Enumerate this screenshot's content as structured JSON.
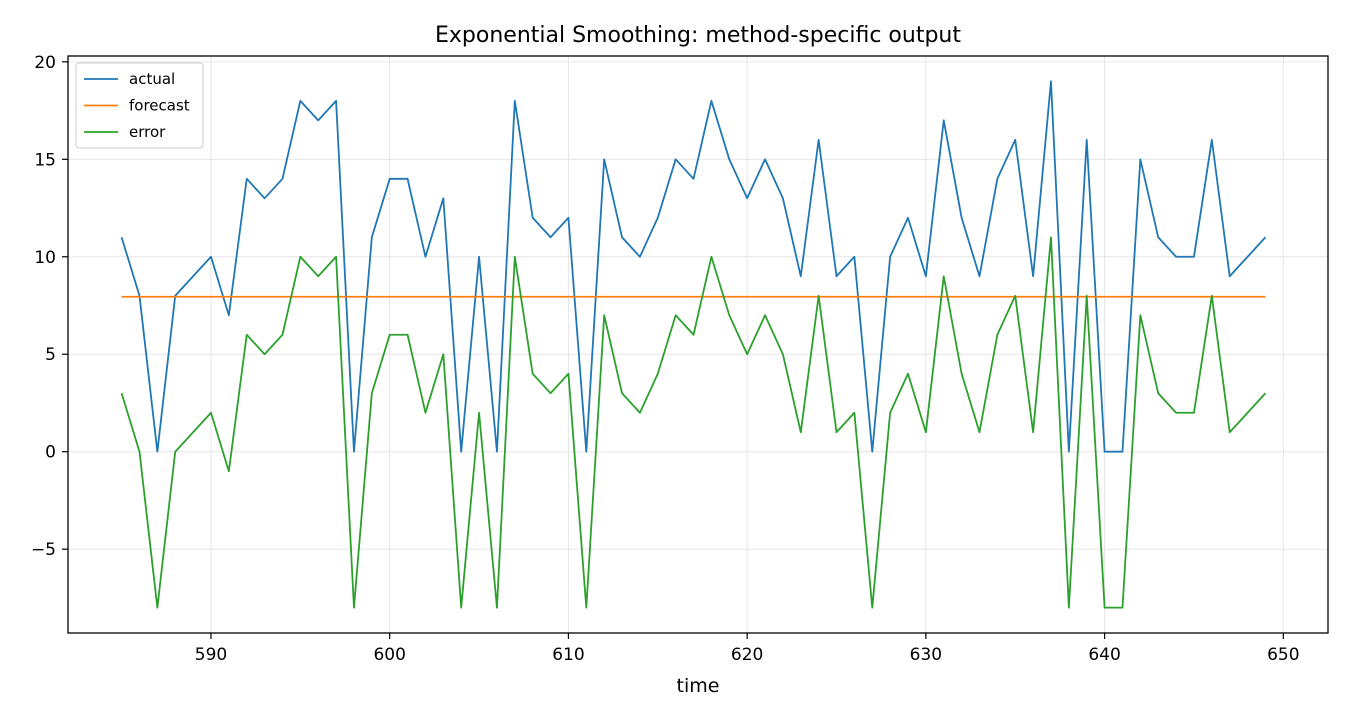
{
  "chart_data": {
    "type": "line",
    "title": "Exponential Smoothing: method-specific output",
    "xlabel": "time",
    "ylabel": "",
    "xlim": [
      582,
      652.5
    ],
    "ylim": [
      -9.3,
      20.3
    ],
    "xticks": [
      590,
      600,
      610,
      620,
      630,
      640,
      650
    ],
    "yticks": [
      -5,
      0,
      5,
      10,
      15,
      20
    ],
    "ytick_labels": [
      "−5",
      "0",
      "5",
      "10",
      "15",
      "20"
    ],
    "grid": true,
    "legend_position": "upper-left",
    "x": [
      585,
      586,
      587,
      588,
      589,
      590,
      591,
      592,
      593,
      594,
      595,
      596,
      597,
      598,
      599,
      600,
      601,
      602,
      603,
      604,
      605,
      606,
      607,
      608,
      609,
      610,
      611,
      612,
      613,
      614,
      615,
      616,
      617,
      618,
      619,
      620,
      621,
      622,
      623,
      624,
      625,
      626,
      627,
      628,
      629,
      630,
      631,
      632,
      633,
      634,
      635,
      636,
      637,
      638,
      639,
      640,
      641,
      642,
      643,
      644,
      645,
      646,
      647,
      648,
      649
    ],
    "series": [
      {
        "name": "actual",
        "color": "#1f77b4",
        "values": [
          11,
          8,
          0,
          8,
          9,
          10,
          7,
          14,
          13,
          14,
          18,
          17,
          18,
          0,
          11,
          14,
          14,
          10,
          13,
          0,
          10,
          0,
          18,
          12,
          11,
          12,
          0,
          15,
          11,
          10,
          12,
          15,
          14,
          18,
          15,
          13,
          15,
          13,
          9,
          16,
          9,
          10,
          0,
          10,
          12,
          9,
          17,
          12,
          9,
          14,
          16,
          9,
          19,
          0,
          16,
          0,
          0,
          15,
          11,
          10,
          10,
          16,
          9,
          10,
          11
        ]
      },
      {
        "name": "forecast",
        "color": "#ff7f0e",
        "values": [
          7.95,
          7.95,
          7.95,
          7.95,
          7.95,
          7.95,
          7.95,
          7.95,
          7.95,
          7.95,
          7.95,
          7.95,
          7.95,
          7.95,
          7.95,
          7.95,
          7.95,
          7.95,
          7.95,
          7.95,
          7.95,
          7.95,
          7.95,
          7.95,
          7.95,
          7.95,
          7.95,
          7.95,
          7.95,
          7.95,
          7.95,
          7.95,
          7.95,
          7.95,
          7.95,
          7.95,
          7.95,
          7.95,
          7.95,
          7.95,
          7.95,
          7.95,
          7.95,
          7.95,
          7.95,
          7.95,
          7.95,
          7.95,
          7.95,
          7.95,
          7.95,
          7.95,
          7.95,
          7.95,
          7.95,
          7.95,
          7.95,
          7.95,
          7.95,
          7.95,
          7.95,
          7.95,
          7.95,
          7.95,
          7.95
        ]
      },
      {
        "name": "error",
        "color": "#2ca02c",
        "values": [
          3,
          0,
          -8,
          0,
          1,
          2,
          -1,
          6,
          5,
          6,
          10,
          9,
          10,
          -8,
          3,
          6,
          6,
          2,
          5,
          -8,
          2,
          -8,
          10,
          4,
          3,
          4,
          -8,
          7,
          3,
          2,
          4,
          7,
          6,
          10,
          7,
          5,
          7,
          5,
          1,
          8,
          1,
          2,
          -8,
          2,
          4,
          1,
          9,
          4,
          1,
          6,
          8,
          1,
          11,
          -8,
          8,
          -8,
          -8,
          7,
          3,
          2,
          2,
          8,
          1,
          2,
          3
        ]
      }
    ]
  }
}
